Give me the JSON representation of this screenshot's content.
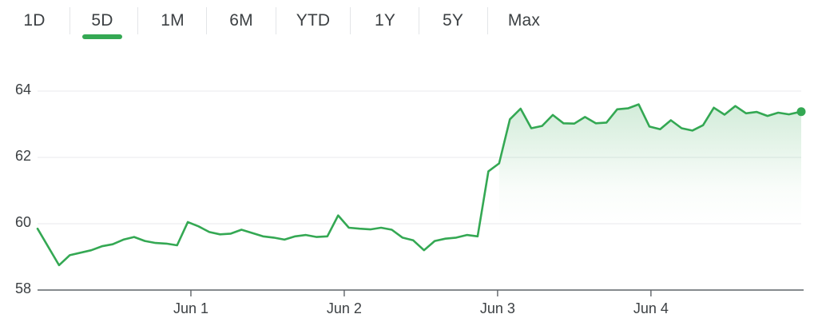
{
  "range_tabs": [
    {
      "label": "1D",
      "selected": false
    },
    {
      "label": "5D",
      "selected": true
    },
    {
      "label": "1M",
      "selected": false
    },
    {
      "label": "6M",
      "selected": false
    },
    {
      "label": "YTD",
      "selected": false
    },
    {
      "label": "1Y",
      "selected": false
    },
    {
      "label": "5Y",
      "selected": false
    },
    {
      "label": "Max",
      "selected": false
    }
  ],
  "colors": {
    "accent": "#34a853",
    "line": "#34a853",
    "grid": "#e8eaed",
    "axis": "#3c4043",
    "text": "#3c4043"
  },
  "chart_data": {
    "type": "area",
    "title": "",
    "xlabel": "",
    "ylabel": "",
    "ylim": [
      58,
      64
    ],
    "yticks": [
      {
        "value": 58,
        "label": "58"
      },
      {
        "value": 60,
        "label": "60"
      },
      {
        "value": 62,
        "label": "62"
      },
      {
        "value": 64,
        "label": "64"
      }
    ],
    "xlim": [
      0,
      4.98
    ],
    "xticks": [
      {
        "value": 1,
        "label": "Jun 1"
      },
      {
        "value": 2,
        "label": "Jun 2"
      },
      {
        "value": 3,
        "label": "Jun 3"
      },
      {
        "value": 4,
        "label": "Jun 4"
      }
    ],
    "grid": true,
    "legend": "none",
    "series": [
      {
        "x": [
          0.0,
          0.14,
          0.21,
          0.35,
          0.42,
          0.49,
          0.56,
          0.63,
          0.7,
          0.77,
          0.84,
          0.91,
          0.98,
          1.05,
          1.12,
          1.19,
          1.26,
          1.33,
          1.4,
          1.47,
          1.54,
          1.61,
          1.68,
          1.75,
          1.82,
          1.89,
          1.96,
          2.03,
          2.1,
          2.17,
          2.24,
          2.31,
          2.38,
          2.45,
          2.52,
          2.59,
          2.66,
          2.73,
          2.8,
          2.87,
          2.94,
          3.01,
          3.08,
          3.15,
          3.22,
          3.29,
          3.36,
          3.43,
          3.5,
          3.57,
          3.64,
          3.71,
          3.78,
          3.85,
          3.92,
          3.99,
          4.06,
          4.13,
          4.2,
          4.27,
          4.34,
          4.41,
          4.48,
          4.55,
          4.62,
          4.69,
          4.76,
          4.83,
          4.9,
          4.98
        ],
        "values": [
          59.85,
          58.75,
          59.05,
          59.2,
          59.32,
          59.38,
          59.52,
          59.6,
          59.48,
          59.42,
          59.4,
          59.35,
          60.05,
          59.92,
          59.75,
          59.68,
          59.7,
          59.82,
          59.72,
          59.62,
          59.58,
          59.52,
          59.62,
          59.66,
          59.6,
          59.62,
          60.25,
          59.88,
          59.85,
          59.83,
          59.88,
          59.82,
          59.58,
          59.5,
          59.2,
          59.48,
          59.55,
          59.58,
          59.66,
          59.62,
          61.58,
          61.82,
          63.15,
          63.47,
          62.88,
          62.95,
          63.28,
          63.03,
          63.02,
          63.22,
          63.03,
          63.05,
          63.45,
          63.48,
          63.6,
          62.93,
          62.85,
          63.12,
          62.88,
          62.81,
          62.97,
          63.5,
          63.29,
          63.55,
          63.33,
          63.37,
          63.25,
          63.35,
          63.3,
          63.38
        ]
      }
    ]
  }
}
